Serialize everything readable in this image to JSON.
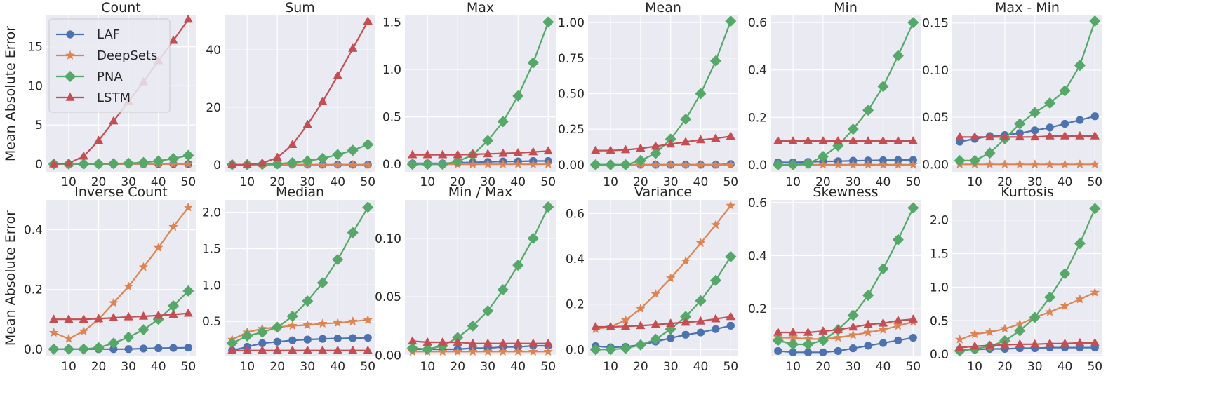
{
  "figure": {
    "row_ylabels": [
      "Mean Absolute Error",
      "Mean Absolute Error"
    ],
    "legend": [
      {
        "name": "LAF",
        "color": "#4c72b0",
        "marker": "circle"
      },
      {
        "name": "DeepSets",
        "color": "#dd8452",
        "marker": "star"
      },
      {
        "name": "PNA",
        "color": "#55a868",
        "marker": "diamond"
      },
      {
        "name": "LSTM",
        "color": "#c44e52",
        "marker": "triangle"
      }
    ],
    "legend_placement": "upper-left of first subplot",
    "grid": true
  },
  "chart_data": [
    {
      "type": "line",
      "title": "Count",
      "x": [
        5,
        10,
        15,
        20,
        25,
        30,
        35,
        40,
        45,
        50
      ],
      "xticks": [
        10,
        20,
        30,
        40,
        50
      ],
      "ylim": [
        -1,
        19
      ],
      "yticks": [
        0,
        5,
        10,
        15
      ],
      "ytick_labels": [
        "0",
        "5",
        "10",
        "15"
      ],
      "series": [
        {
          "name": "LAF",
          "values": [
            0,
            0,
            0,
            0,
            0,
            0,
            0,
            0,
            0,
            0
          ]
        },
        {
          "name": "DeepSets",
          "values": [
            0,
            0,
            0,
            0,
            0,
            0,
            0,
            0,
            0,
            0
          ]
        },
        {
          "name": "PNA",
          "values": [
            0,
            0,
            0,
            0.02,
            0.05,
            0.1,
            0.2,
            0.4,
            0.7,
            1.1
          ]
        },
        {
          "name": "LSTM",
          "values": [
            0,
            0.1,
            1.0,
            3.0,
            5.5,
            8.0,
            10.5,
            13.2,
            15.8,
            18.5
          ]
        }
      ]
    },
    {
      "type": "line",
      "title": "Sum",
      "x": [
        5,
        10,
        15,
        20,
        25,
        30,
        35,
        40,
        45,
        50
      ],
      "xticks": [
        10,
        20,
        30,
        40,
        50
      ],
      "ylim": [
        -2.5,
        52
      ],
      "yticks": [
        0,
        20,
        40
      ],
      "ytick_labels": [
        "0",
        "20",
        "40"
      ],
      "series": [
        {
          "name": "LAF",
          "values": [
            0,
            0,
            0,
            0,
            0,
            0,
            0,
            0,
            0,
            0
          ]
        },
        {
          "name": "DeepSets",
          "values": [
            0,
            0,
            0,
            0,
            0,
            0,
            0,
            0,
            0,
            0
          ]
        },
        {
          "name": "PNA",
          "values": [
            0,
            0,
            0.1,
            0.3,
            0.7,
            1.3,
            2.2,
            3.5,
            5.0,
            7.0
          ]
        },
        {
          "name": "LSTM",
          "values": [
            0,
            0,
            0.5,
            2.5,
            7.0,
            14.0,
            22.0,
            31.0,
            40.5,
            50.0
          ]
        }
      ]
    },
    {
      "type": "line",
      "title": "Max",
      "x": [
        5,
        10,
        15,
        20,
        25,
        30,
        35,
        40,
        45,
        50
      ],
      "xticks": [
        10,
        20,
        30,
        40,
        50
      ],
      "ylim": [
        -0.08,
        1.57
      ],
      "yticks": [
        0,
        0.5,
        1.0,
        1.5
      ],
      "ytick_labels": [
        "0.0",
        "0.5",
        "1.0",
        "1.5"
      ],
      "series": [
        {
          "name": "LAF",
          "values": [
            0.01,
            0.01,
            0.01,
            0.015,
            0.02,
            0.025,
            0.03,
            0.03,
            0.035,
            0.035
          ]
        },
        {
          "name": "DeepSets",
          "values": [
            0,
            0,
            0,
            0,
            0,
            0,
            0,
            0,
            0,
            0
          ]
        },
        {
          "name": "PNA",
          "values": [
            0,
            0,
            0,
            0.03,
            0.1,
            0.25,
            0.45,
            0.72,
            1.07,
            1.5
          ]
        },
        {
          "name": "LSTM",
          "values": [
            0.1,
            0.1,
            0.1,
            0.1,
            0.105,
            0.11,
            0.115,
            0.12,
            0.13,
            0.14
          ]
        }
      ]
    },
    {
      "type": "line",
      "title": "Mean",
      "x": [
        5,
        10,
        15,
        20,
        25,
        30,
        35,
        40,
        45,
        50
      ],
      "xticks": [
        10,
        20,
        30,
        40,
        50
      ],
      "ylim": [
        -0.05,
        1.05
      ],
      "yticks": [
        0,
        0.25,
        0.5,
        0.75,
        1.0
      ],
      "ytick_labels": [
        "0.00",
        "0.25",
        "0.50",
        "0.75",
        "1.00"
      ],
      "series": [
        {
          "name": "LAF",
          "values": [
            0,
            0,
            0,
            0,
            0,
            0,
            0,
            0,
            0,
            0.005
          ]
        },
        {
          "name": "DeepSets",
          "values": [
            0,
            0,
            0,
            0,
            0,
            0,
            0,
            0,
            0,
            0
          ]
        },
        {
          "name": "PNA",
          "values": [
            0,
            0,
            0,
            0.03,
            0.08,
            0.18,
            0.32,
            0.5,
            0.73,
            1.01
          ]
        },
        {
          "name": "LSTM",
          "values": [
            0.1,
            0.1,
            0.105,
            0.115,
            0.13,
            0.145,
            0.16,
            0.175,
            0.185,
            0.2
          ]
        }
      ]
    },
    {
      "type": "line",
      "title": "Min",
      "x": [
        5,
        10,
        15,
        20,
        25,
        30,
        35,
        40,
        45,
        50
      ],
      "xticks": [
        10,
        20,
        30,
        40,
        50
      ],
      "ylim": [
        -0.03,
        0.63
      ],
      "yticks": [
        0,
        0.2,
        0.4,
        0.6
      ],
      "ytick_labels": [
        "0.0",
        "0.2",
        "0.4",
        "0.6"
      ],
      "series": [
        {
          "name": "LAF",
          "values": [
            0.01,
            0.01,
            0.012,
            0.014,
            0.015,
            0.017,
            0.018,
            0.019,
            0.02,
            0.02
          ]
        },
        {
          "name": "DeepSets",
          "values": [
            0,
            0,
            0,
            0,
            0,
            0,
            0,
            0,
            0,
            0
          ]
        },
        {
          "name": "PNA",
          "values": [
            0,
            0,
            0.005,
            0.035,
            0.08,
            0.15,
            0.23,
            0.33,
            0.46,
            0.6
          ]
        },
        {
          "name": "LSTM",
          "values": [
            0.1,
            0.1,
            0.1,
            0.1,
            0.1,
            0.1,
            0.1,
            0.1,
            0.1,
            0.1
          ]
        }
      ]
    },
    {
      "type": "line",
      "title": "Max - Min",
      "x": [
        5,
        10,
        15,
        20,
        25,
        30,
        35,
        40,
        45,
        50
      ],
      "xticks": [
        10,
        20,
        30,
        40,
        50
      ],
      "ylim": [
        -0.008,
        0.158
      ],
      "yticks": [
        0,
        0.05,
        0.1,
        0.15
      ],
      "ytick_labels": [
        "0.00",
        "0.05",
        "0.10",
        "0.15"
      ],
      "series": [
        {
          "name": "LAF",
          "values": [
            0.024,
            0.027,
            0.03,
            0.031,
            0.033,
            0.036,
            0.039,
            0.043,
            0.047,
            0.051
          ]
        },
        {
          "name": "DeepSets",
          "values": [
            0,
            0,
            0,
            0,
            0,
            0,
            0,
            0,
            0,
            0
          ]
        },
        {
          "name": "PNA",
          "values": [
            0.004,
            0.004,
            0.012,
            0.027,
            0.043,
            0.055,
            0.065,
            0.078,
            0.105,
            0.152
          ]
        },
        {
          "name": "LSTM",
          "values": [
            0.029,
            0.029,
            0.029,
            0.029,
            0.029,
            0.029,
            0.03,
            0.03,
            0.03,
            0.03
          ]
        }
      ]
    },
    {
      "type": "line",
      "title": "Inverse Count",
      "x": [
        5,
        10,
        15,
        20,
        25,
        30,
        35,
        40,
        45,
        50
      ],
      "xticks": [
        10,
        20,
        30,
        40,
        50
      ],
      "ylim": [
        -0.024,
        0.5
      ],
      "yticks": [
        0,
        0.2,
        0.4
      ],
      "ytick_labels": [
        "0.0",
        "0.2",
        "0.4"
      ],
      "series": [
        {
          "name": "LAF",
          "values": [
            0,
            0,
            0,
            0,
            0,
            0,
            0.002,
            0.003,
            0.004,
            0.005
          ]
        },
        {
          "name": "DeepSets",
          "values": [
            0.055,
            0.035,
            0.06,
            0.1,
            0.155,
            0.21,
            0.275,
            0.34,
            0.41,
            0.475
          ]
        },
        {
          "name": "PNA",
          "values": [
            0,
            0,
            0,
            0.005,
            0.02,
            0.04,
            0.065,
            0.1,
            0.145,
            0.195
          ]
        },
        {
          "name": "LSTM",
          "values": [
            0.1,
            0.1,
            0.1,
            0.102,
            0.105,
            0.108,
            0.11,
            0.113,
            0.116,
            0.12
          ]
        }
      ]
    },
    {
      "type": "line",
      "title": "Median",
      "x": [
        5,
        10,
        15,
        20,
        25,
        30,
        35,
        40,
        45,
        50
      ],
      "xticks": [
        10,
        20,
        30,
        40,
        50
      ],
      "ylim": [
        0.02,
        2.17
      ],
      "yticks": [
        0.5,
        1.0,
        1.5,
        2.0
      ],
      "ytick_labels": [
        "0.5",
        "1.0",
        "1.5",
        "2.0"
      ],
      "series": [
        {
          "name": "LAF",
          "values": [
            0.1,
            0.15,
            0.2,
            0.22,
            0.24,
            0.25,
            0.26,
            0.265,
            0.27,
            0.275
          ]
        },
        {
          "name": "DeepSets",
          "values": [
            0.25,
            0.35,
            0.4,
            0.42,
            0.44,
            0.45,
            0.47,
            0.48,
            0.5,
            0.52
          ]
        },
        {
          "name": "PNA",
          "values": [
            0.2,
            0.3,
            0.35,
            0.42,
            0.57,
            0.78,
            1.03,
            1.35,
            1.72,
            2.07
          ]
        },
        {
          "name": "LSTM",
          "values": [
            0.1,
            0.1,
            0.1,
            0.1,
            0.1,
            0.1,
            0.1,
            0.1,
            0.1,
            0.1
          ]
        }
      ]
    },
    {
      "type": "line",
      "title": "Min / Max",
      "x": [
        5,
        10,
        15,
        20,
        25,
        30,
        35,
        40,
        45,
        50
      ],
      "xticks": [
        10,
        20,
        30,
        40,
        50
      ],
      "ylim": [
        -0.001,
        0.133
      ],
      "yticks": [
        0,
        0.05,
        0.1
      ],
      "ytick_labels": [
        "0.00",
        "0.05",
        "0.10"
      ],
      "series": [
        {
          "name": "LAF",
          "values": [
            0.005,
            0.005,
            0.005,
            0.005,
            0.006,
            0.006,
            0.007,
            0.007,
            0.008,
            0.008
          ]
        },
        {
          "name": "DeepSets",
          "values": [
            0.003,
            0.003,
            0.003,
            0.003,
            0.003,
            0.003,
            0.003,
            0.003,
            0.003,
            0.003
          ]
        },
        {
          "name": "PNA",
          "values": [
            0.006,
            0.005,
            0.008,
            0.015,
            0.025,
            0.038,
            0.056,
            0.077,
            0.1,
            0.127
          ]
        },
        {
          "name": "LSTM",
          "values": [
            0.012,
            0.011,
            0.011,
            0.011,
            0.01,
            0.01,
            0.01,
            0.01,
            0.01,
            0.01
          ]
        }
      ]
    },
    {
      "type": "line",
      "title": "Variance",
      "x": [
        5,
        10,
        15,
        20,
        25,
        30,
        35,
        40,
        45,
        50
      ],
      "xticks": [
        10,
        20,
        30,
        40,
        50
      ],
      "ylim": [
        -0.03,
        0.66
      ],
      "yticks": [
        0,
        0.2,
        0.4,
        0.6
      ],
      "ytick_labels": [
        "0.0",
        "0.2",
        "0.4",
        "0.6"
      ],
      "series": [
        {
          "name": "LAF",
          "values": [
            0.015,
            0.01,
            0.012,
            0.02,
            0.035,
            0.05,
            0.065,
            0.075,
            0.09,
            0.105
          ]
        },
        {
          "name": "DeepSets",
          "values": [
            0.09,
            0.1,
            0.13,
            0.18,
            0.245,
            0.315,
            0.39,
            0.47,
            0.55,
            0.635
          ]
        },
        {
          "name": "PNA",
          "values": [
            0,
            0,
            0.005,
            0.02,
            0.045,
            0.09,
            0.145,
            0.215,
            0.305,
            0.41
          ]
        },
        {
          "name": "LSTM",
          "values": [
            0.1,
            0.1,
            0.102,
            0.105,
            0.11,
            0.115,
            0.12,
            0.125,
            0.135,
            0.145
          ]
        }
      ]
    },
    {
      "type": "line",
      "title": "Skewness",
      "x": [
        5,
        10,
        15,
        20,
        25,
        30,
        35,
        40,
        45,
        50
      ],
      "xticks": [
        10,
        20,
        30,
        40,
        50
      ],
      "ylim": [
        0.02,
        0.61
      ],
      "yticks": [
        0.2,
        0.4,
        0.6
      ],
      "ytick_labels": [
        "0.2",
        "0.4",
        "0.6"
      ],
      "series": [
        {
          "name": "LAF",
          "values": [
            0.04,
            0.035,
            0.035,
            0.035,
            0.04,
            0.05,
            0.06,
            0.07,
            0.08,
            0.09
          ]
        },
        {
          "name": "DeepSets",
          "values": [
            0.09,
            0.09,
            0.085,
            0.085,
            0.09,
            0.1,
            0.11,
            0.12,
            0.135,
            0.15
          ]
        },
        {
          "name": "PNA",
          "values": [
            0.08,
            0.065,
            0.065,
            0.08,
            0.12,
            0.175,
            0.25,
            0.35,
            0.46,
            0.58
          ]
        },
        {
          "name": "LSTM",
          "values": [
            0.11,
            0.11,
            0.11,
            0.115,
            0.12,
            0.13,
            0.14,
            0.145,
            0.155,
            0.16
          ]
        }
      ]
    },
    {
      "type": "line",
      "title": "Kurtosis",
      "x": [
        5,
        10,
        15,
        20,
        25,
        30,
        35,
        40,
        45,
        50
      ],
      "xticks": [
        10,
        20,
        30,
        40,
        50
      ],
      "ylim": [
        -0.03,
        2.3
      ],
      "yticks": [
        0,
        0.5,
        1.0,
        1.5,
        2.0
      ],
      "ytick_labels": [
        "0.0",
        "0.5",
        "1.0",
        "1.5",
        "2.0"
      ],
      "series": [
        {
          "name": "LAF",
          "values": [
            0.07,
            0.07,
            0.08,
            0.08,
            0.09,
            0.09,
            0.1,
            0.1,
            0.1,
            0.1
          ]
        },
        {
          "name": "DeepSets",
          "values": [
            0.22,
            0.3,
            0.33,
            0.38,
            0.45,
            0.55,
            0.63,
            0.72,
            0.82,
            0.92
          ]
        },
        {
          "name": "PNA",
          "values": [
            0.05,
            0.08,
            0.12,
            0.2,
            0.35,
            0.55,
            0.85,
            1.2,
            1.65,
            2.17
          ]
        },
        {
          "name": "LSTM",
          "values": [
            0.1,
            0.12,
            0.13,
            0.14,
            0.15,
            0.15,
            0.16,
            0.16,
            0.17,
            0.17
          ]
        }
      ]
    }
  ]
}
